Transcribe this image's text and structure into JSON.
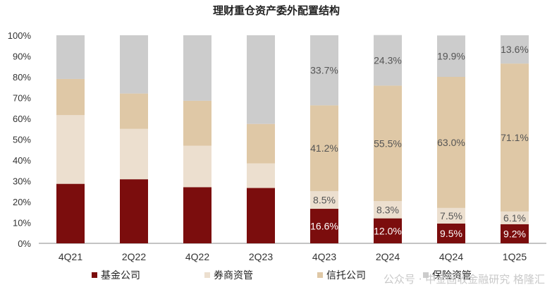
{
  "chart_data": {
    "type": "bar",
    "stacked": true,
    "title": "理财重仓资产委外配置结构",
    "categories": [
      "4Q21",
      "2Q22",
      "4Q22",
      "2Q23",
      "4Q23",
      "2Q24",
      "4Q24",
      "1Q25"
    ],
    "ylim": [
      0,
      100
    ],
    "yticks": [
      "0%",
      "10%",
      "20%",
      "30%",
      "40%",
      "50%",
      "60%",
      "70%",
      "80%",
      "90%",
      "100%"
    ],
    "legend_position": "bottom",
    "series": [
      {
        "name": "基金公司",
        "color": "#7b0d0d",
        "values": [
          28.6,
          30.8,
          27.0,
          26.6,
          16.6,
          12.0,
          9.5,
          9.2
        ],
        "labels": [
          "",
          "",
          "",
          "",
          "16.6%",
          "12.0%",
          "9.5%",
          "9.2%"
        ],
        "label_color": "#ffffff"
      },
      {
        "name": "券商资管",
        "color": "#ecdfcf",
        "values": [
          33.0,
          24.2,
          19.9,
          11.8,
          8.5,
          8.3,
          7.5,
          6.1
        ],
        "labels": [
          "",
          "",
          "",
          "",
          "8.5%",
          "8.3%",
          "7.5%",
          "6.1%"
        ],
        "label_color": "#555555"
      },
      {
        "name": "信托公司",
        "color": "#dfc8a6",
        "values": [
          17.4,
          17.0,
          21.6,
          19.0,
          41.2,
          55.5,
          63.0,
          71.1
        ],
        "labels": [
          "",
          "",
          "",
          "",
          "41.2%",
          "55.5%",
          "63.0%",
          "71.1%"
        ],
        "label_color": "#555555"
      },
      {
        "name": "保险资管",
        "color": "#cccccc",
        "values": [
          21.0,
          28.0,
          31.5,
          42.6,
          33.7,
          24.3,
          19.9,
          13.6
        ],
        "labels": [
          "",
          "",
          "",
          "",
          "33.7%",
          "24.3%",
          "19.9%",
          "13.6%"
        ],
        "label_color": "#555555"
      }
    ]
  },
  "watermark": "公众号 · 中金固收金融研究 格隆汇"
}
